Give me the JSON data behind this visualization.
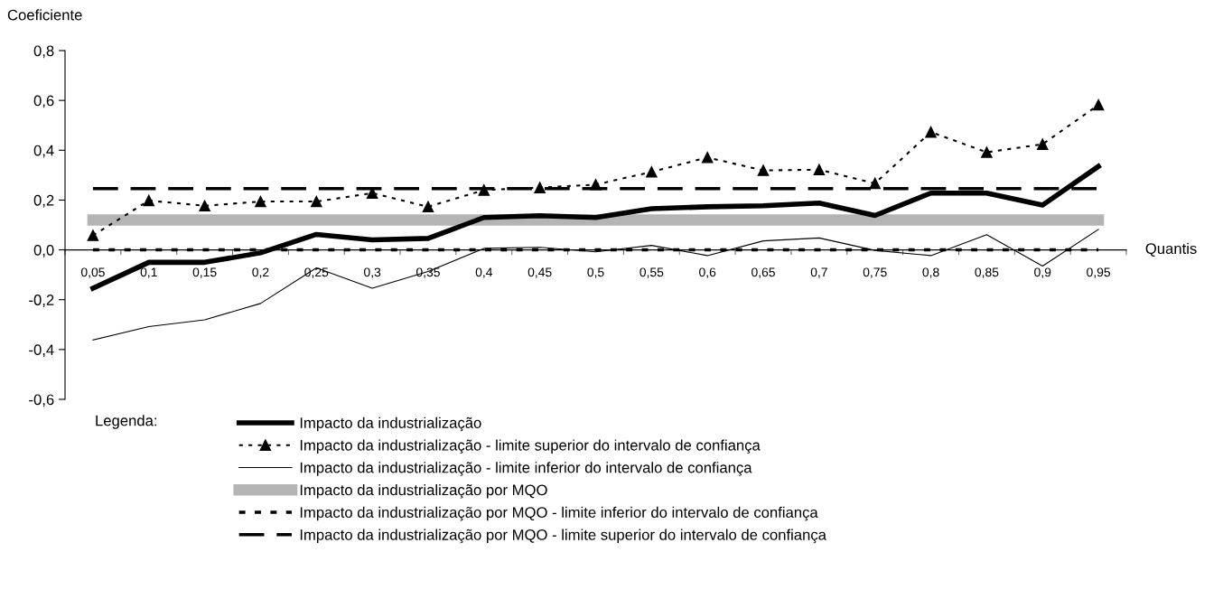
{
  "chart_data": {
    "type": "line",
    "ylabel": "Coeficiente",
    "xlabel": "Quantis",
    "legend_title": "Legenda:",
    "legend": "bottom",
    "grid": false,
    "categories": [
      "0,05",
      "0,1",
      "0,15",
      "0,2",
      "0,25",
      "0,3",
      "0,35",
      "0,4",
      "0,45",
      "0,5",
      "0,55",
      "0,6",
      "0,65",
      "0,7",
      "0,75",
      "0,8",
      "0,85",
      "0,9",
      "0,95"
    ],
    "ylim": [
      -0.6,
      0.8
    ],
    "yticks": [
      {
        "value": -0.6,
        "label": "-0,6"
      },
      {
        "value": -0.4,
        "label": "-0,4"
      },
      {
        "value": -0.2,
        "label": "-0,2"
      },
      {
        "value": 0.0,
        "label": "0,0"
      },
      {
        "value": 0.2,
        "label": "0,2"
      },
      {
        "value": 0.4,
        "label": "0,4"
      },
      {
        "value": 0.6,
        "label": "0,6"
      },
      {
        "value": 0.8,
        "label": "0,8"
      }
    ],
    "series": [
      {
        "name": "Impacto da industrialização",
        "color": "#000000",
        "line_style": "solid",
        "marker": "none",
        "values": [
          -0.154,
          -0.05,
          -0.05,
          -0.012,
          0.062,
          0.04,
          0.046,
          0.13,
          0.137,
          0.13,
          0.165,
          0.173,
          0.177,
          0.188,
          0.138,
          0.228,
          0.228,
          0.18,
          0.335
        ]
      },
      {
        "name": "Impacto da industrialização - limite superior do intervalo de confiança",
        "color": "#000000",
        "line_style": "dotted",
        "marker": "triangle",
        "values": [
          0.058,
          0.198,
          0.177,
          0.194,
          0.194,
          0.228,
          0.173,
          0.24,
          0.25,
          0.262,
          0.313,
          0.371,
          0.319,
          0.322,
          0.267,
          0.473,
          0.392,
          0.424,
          0.582
        ]
      },
      {
        "name": "Impacto da industrialização - limite inferior do intervalo de confiança",
        "color": "#000000",
        "line_style": "solid",
        "marker": "none",
        "values": [
          -0.362,
          -0.308,
          -0.281,
          -0.215,
          -0.072,
          -0.154,
          -0.087,
          0.006,
          0.01,
          -0.008,
          0.018,
          -0.023,
          0.036,
          0.048,
          -0.002,
          -0.023,
          0.061,
          -0.065,
          0.082
        ]
      },
      {
        "name": "Impacto da industrialização por MQO",
        "color": "#b4b4b4",
        "line_style": "solid",
        "marker": "none",
        "values": [
          0.12,
          0.12,
          0.12,
          0.12,
          0.12,
          0.12,
          0.12,
          0.12,
          0.12,
          0.12,
          0.12,
          0.12,
          0.12,
          0.12,
          0.12,
          0.12,
          0.12,
          0.12,
          0.12
        ]
      },
      {
        "name": "Impacto da industrialização por MQO - limite inferior do intervalo de confiança",
        "color": "#000000",
        "line_style": "dotted",
        "marker": "none",
        "values": [
          0.0,
          0.0,
          0.0,
          0.0,
          0.0,
          0.0,
          0.0,
          0.0,
          0.0,
          0.0,
          0.0,
          0.0,
          0.0,
          0.0,
          0.0,
          0.0,
          0.0,
          0.0,
          0.0
        ]
      },
      {
        "name": "Impacto da industrialização por MQO - limite superior do intervalo de confiança",
        "color": "#000000",
        "line_style": "dashed",
        "marker": "none",
        "values": [
          0.246,
          0.246,
          0.246,
          0.246,
          0.246,
          0.246,
          0.246,
          0.246,
          0.246,
          0.246,
          0.246,
          0.246,
          0.246,
          0.246,
          0.246,
          0.246,
          0.246,
          0.246,
          0.246
        ]
      }
    ]
  }
}
